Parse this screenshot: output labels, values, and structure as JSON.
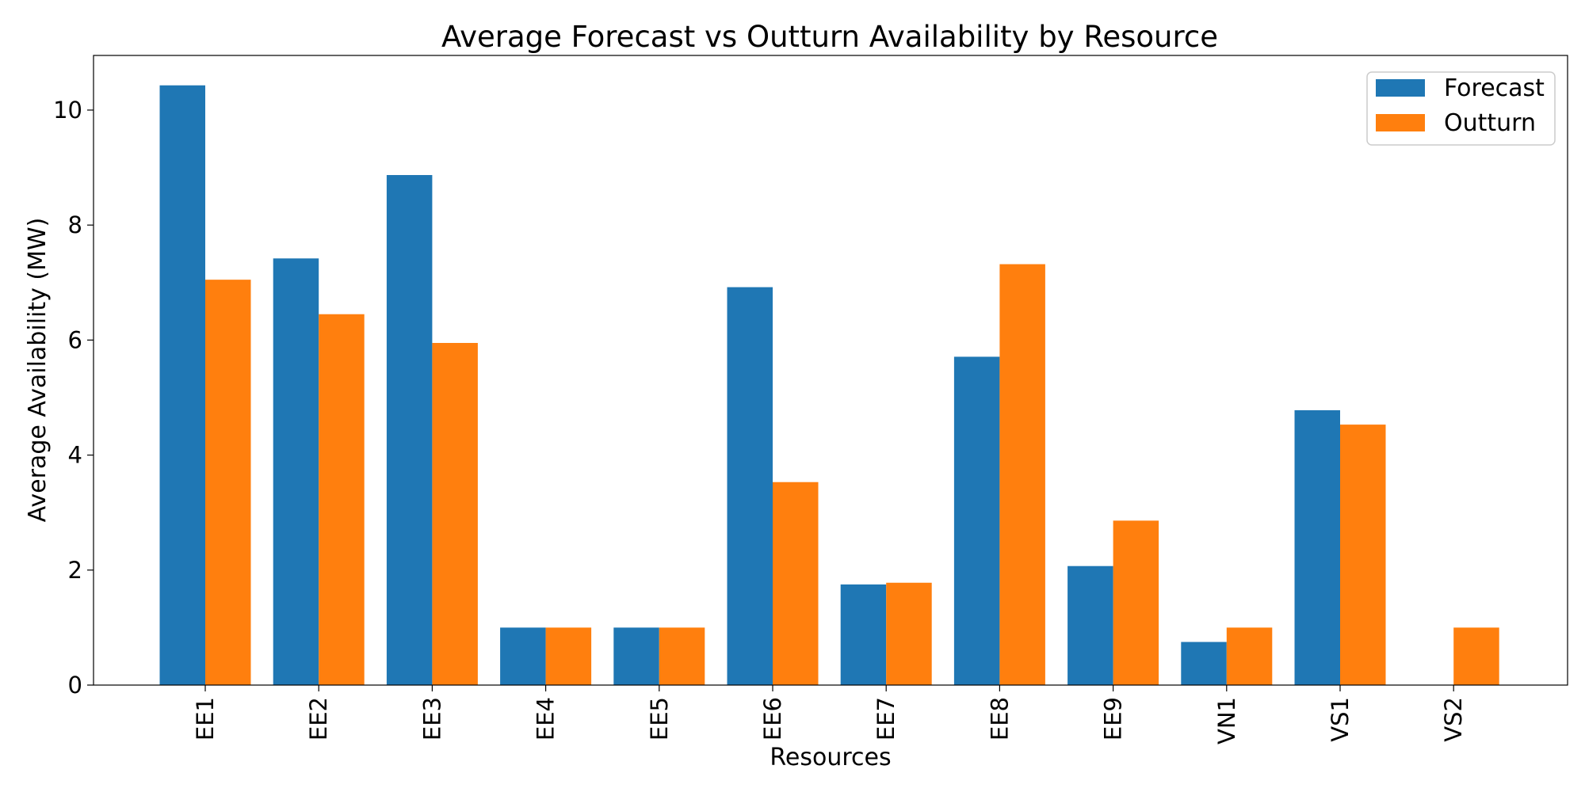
{
  "chart_data": {
    "type": "bar",
    "title": "Average Forecast vs Outturn Availability by Resource",
    "xlabel": "Resources",
    "ylabel": "Average Availability (MW)",
    "categories": [
      "EE1",
      "EE2",
      "EE3",
      "EE4",
      "EE5",
      "EE6",
      "EE7",
      "EE8",
      "EE9",
      "VN1",
      "VS1",
      "VS2"
    ],
    "series": [
      {
        "name": "Forecast",
        "color": "#1f77b4",
        "values": [
          10.43,
          7.42,
          8.87,
          1.0,
          1.0,
          6.92,
          1.75,
          5.71,
          2.07,
          0.75,
          4.78,
          0
        ]
      },
      {
        "name": "Outturn",
        "color": "#ff7f0e",
        "values": [
          7.05,
          6.45,
          5.95,
          1.0,
          1.0,
          3.53,
          1.78,
          7.32,
          2.86,
          1.0,
          4.53,
          1.0
        ]
      }
    ],
    "ylim": [
      0,
      10.95
    ],
    "yticks": [
      0,
      2,
      4,
      6,
      8,
      10
    ],
    "grid": false,
    "legend_position": "top-right"
  }
}
